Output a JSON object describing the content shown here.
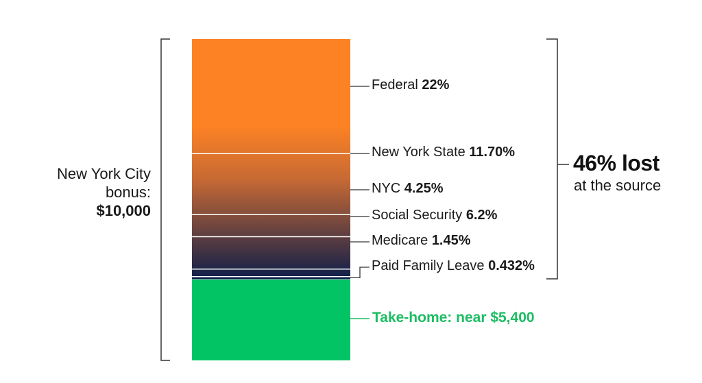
{
  "chart_data": {
    "type": "bar",
    "stacked": true,
    "total": {
      "line1": "New York City",
      "line2": "bonus:",
      "amount": "$10,000"
    },
    "segments": [
      {
        "name": "Federal",
        "value": 22,
        "label": "22%"
      },
      {
        "name": "New York State",
        "value": 11.7,
        "label": "11.70%"
      },
      {
        "name": "NYC",
        "value": 4.25,
        "label": "4.25%"
      },
      {
        "name": "Social Security",
        "value": 6.2,
        "label": "6.2%"
      },
      {
        "name": "Medicare",
        "value": 1.45,
        "label": "1.45%"
      },
      {
        "name": "Paid Family Leave",
        "value": 0.432,
        "label": "0.432%"
      }
    ],
    "lost": {
      "headline": "46% lost",
      "subline": "at the source"
    },
    "takehome": {
      "label": "Take-home: near $5,400",
      "value": 53.968
    },
    "colors": {
      "tax_top": "#fd8224",
      "tax_mid": "#c86a34",
      "tax_bottom": "#0f1e4a",
      "takehome": "#02c465",
      "takehome_text": "#1dbd63",
      "divider": "#ffffff",
      "bracket": "#333333"
    }
  }
}
